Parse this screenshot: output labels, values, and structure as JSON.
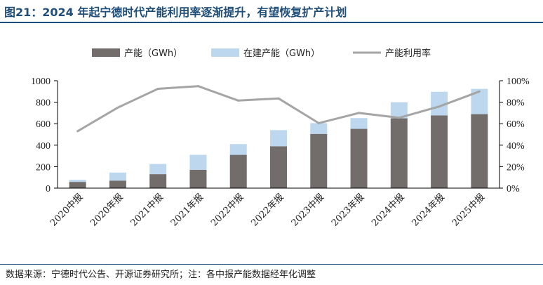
{
  "header": {
    "title": "图21：2024 年起宁德时代产能利用率逐渐提升，有望恢复扩产计划"
  },
  "footer": {
    "source": "数据来源：宁德时代公告、开源证券研究所；注：各中报产能数据经年化调整"
  },
  "colors": {
    "capacity": "#726c6b",
    "under_construction": "#bdd7ee",
    "utilization": "#a5a5a5",
    "title": "#1f4e79"
  },
  "chart_data": {
    "type": "bar",
    "categories": [
      "2020中报",
      "2020年报",
      "2021中报",
      "2021年报",
      "2022中报",
      "2022年报",
      "2023中报",
      "2023年报",
      "2024中报",
      "2024年报",
      "2025中报"
    ],
    "series": [
      {
        "name": "产能（GWh）",
        "type": "bar",
        "stack": "capacity",
        "axis": "left",
        "values": [
          58,
          70,
          130,
          170,
          310,
          390,
          505,
          552,
          650,
          677,
          689
        ]
      },
      {
        "name": "在建产能（GWh）",
        "type": "bar",
        "stack": "capacity",
        "axis": "left",
        "values": [
          20,
          75,
          95,
          140,
          100,
          150,
          100,
          100,
          150,
          220,
          235
        ]
      },
      {
        "name": "产能利用率",
        "type": "line",
        "axis": "right",
        "values": [
          0.53,
          0.75,
          0.925,
          0.95,
          0.815,
          0.835,
          0.605,
          0.7,
          0.655,
          0.76,
          0.9
        ]
      }
    ],
    "y_left": {
      "min": 0,
      "max": 1000,
      "ticks": [
        0,
        200,
        400,
        600,
        800,
        1000
      ]
    },
    "y_right": {
      "min": 0,
      "max": 1,
      "ticks": [
        "0%",
        "20%",
        "40%",
        "60%",
        "80%",
        "100%"
      ]
    },
    "legend": {
      "position": "top"
    },
    "grid": false
  }
}
